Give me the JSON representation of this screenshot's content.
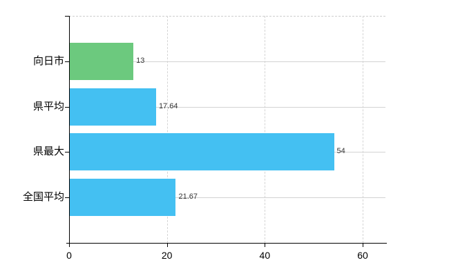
{
  "chart_data": {
    "type": "bar",
    "orientation": "horizontal",
    "title": "",
    "categories": [
      "向日市",
      "県平均",
      "県最大",
      "全国平均"
    ],
    "values": [
      13,
      17.64,
      54,
      21.67
    ],
    "value_labels": [
      "13",
      "17.64",
      "54",
      "21.67"
    ],
    "bar_colors": [
      "#6cc97e",
      "#44c0f2",
      "#44c0f2",
      "#44c0f2"
    ],
    "x_tick_labels": [
      "0",
      "20",
      "40",
      "60"
    ],
    "x_tick_values": [
      0,
      20,
      40,
      60
    ],
    "xlim": [
      0,
      64.7
    ],
    "grid": true,
    "legend": false,
    "xlabel": "",
    "ylabel": "",
    "colors": {
      "background": "#ffffff",
      "axis": "#000000",
      "gridline": "#d2d2d2",
      "plot_top_border": "#cccccc",
      "category_text": "#000000",
      "value_text": "#333333",
      "green_bar": "#6cc97e",
      "blue_bar": "#44c0f2"
    }
  }
}
